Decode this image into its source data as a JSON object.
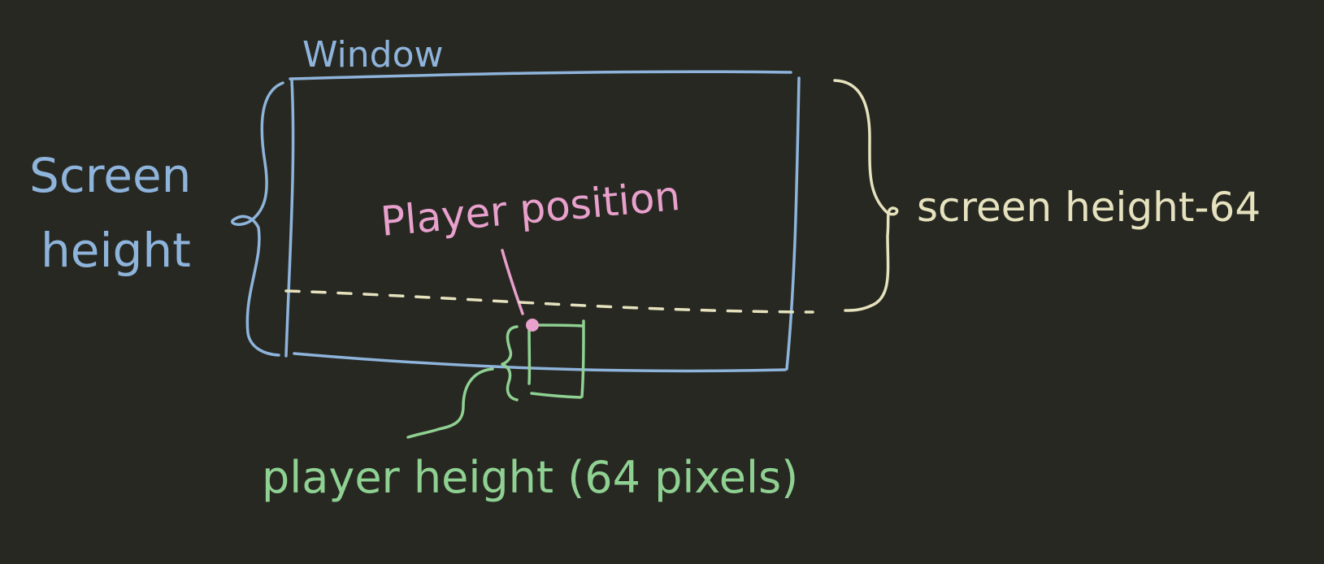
{
  "labels": {
    "window": "Window",
    "screen_height_line1": "Screen",
    "screen_height_line2": "height",
    "player_position": "Player position",
    "screen_height_minus": "screen height-64",
    "player_height": "player height (64 pixels)"
  },
  "colors": {
    "background": "#272822",
    "window": "#8fb4dc",
    "player_position": "#e8a0cc",
    "offset": "#e6e2be",
    "player": "#8fd192"
  }
}
